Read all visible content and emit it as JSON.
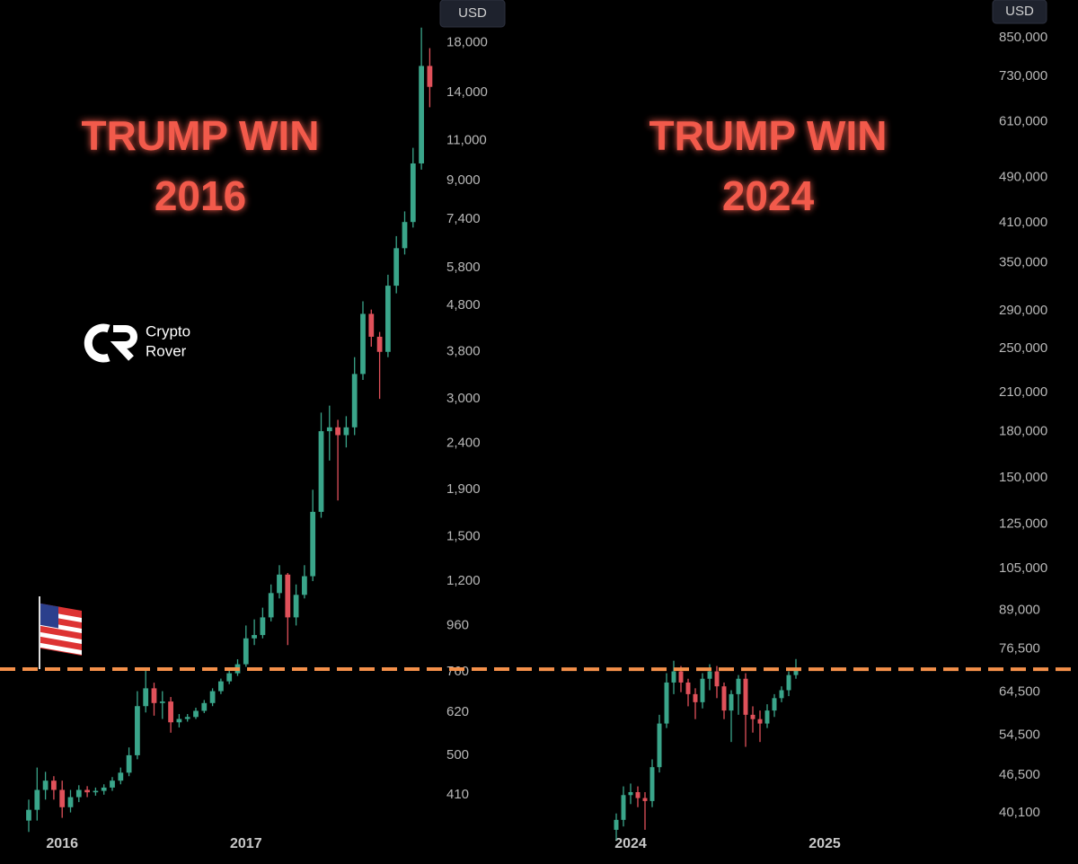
{
  "chart_data": [
    {
      "type": "candlestick",
      "title": "TRUMP WIN",
      "subtitle": "2016",
      "y_unit": "USD",
      "log_scale": true,
      "grid": false,
      "up_color": "#3aa58a",
      "down_color": "#e0515a",
      "reference_line": 771,
      "reference_color": "#f4904a",
      "ylim": [
        342,
        22290
      ],
      "yticks": [
        410,
        500,
        620,
        760,
        960,
        {
          "value": 1200,
          "label": "1,200"
        },
        {
          "value": 1500,
          "label": "1,500"
        },
        {
          "value": 1900,
          "label": "1,900"
        },
        {
          "value": 2400,
          "label": "2,400"
        },
        {
          "value": 3000,
          "label": "3,000"
        },
        {
          "value": 3800,
          "label": "3,800"
        },
        {
          "value": 4800,
          "label": "4,800"
        },
        {
          "value": 5800,
          "label": "5,800"
        },
        {
          "value": 7400,
          "label": "7,400"
        },
        {
          "value": 9000,
          "label": "9,000"
        },
        {
          "value": 11000,
          "label": "11,000"
        },
        {
          "value": 14000,
          "label": "14,000"
        },
        {
          "value": 18000,
          "label": "18,000"
        }
      ],
      "categories": [
        null,
        null,
        null,
        null,
        "2016",
        null,
        null,
        null,
        null,
        null,
        null,
        null,
        null,
        null,
        null,
        null,
        null,
        null,
        null,
        null,
        null,
        null,
        null,
        null,
        null,
        null,
        "2017",
        null,
        null,
        null,
        null,
        null,
        null,
        null,
        null,
        null,
        null,
        null,
        null,
        null,
        null,
        null,
        null,
        null,
        null,
        null,
        null,
        null,
        null
      ],
      "open": [
        360,
        380,
        420,
        440,
        420,
        385,
        405,
        420,
        415,
        418,
        425,
        440,
        458,
        500,
        640,
        700,
        650,
        655,
        590,
        600,
        606,
        625,
        650,
        690,
        725,
        755,
        790,
        900,
        915,
        1000,
        1130,
        1240,
        1000,
        1120,
        1230,
        1700,
        2550,
        2600,
        2500,
        2600,
        3400,
        4600,
        4100,
        3800,
        5300,
        6400,
        7300,
        9800,
        16000
      ],
      "high": [
        400,
        470,
        460,
        450,
        440,
        420,
        430,
        428,
        425,
        432,
        448,
        470,
        520,
        690,
        770,
        720,
        690,
        670,
        615,
        615,
        635,
        660,
        700,
        735,
        765,
        810,
        960,
        990,
        1050,
        1180,
        1300,
        1250,
        1180,
        1300,
        1900,
        2800,
        2900,
        2700,
        2750,
        3700,
        4900,
        4700,
        4200,
        5600,
        6800,
        7700,
        10600,
        19400,
        17500
      ],
      "low": [
        340,
        360,
        400,
        400,
        365,
        375,
        395,
        405,
        408,
        410,
        418,
        432,
        450,
        490,
        620,
        610,
        600,
        560,
        575,
        592,
        600,
        618,
        640,
        680,
        715,
        745,
        780,
        870,
        900,
        980,
        1100,
        870,
        960,
        1100,
        1200,
        1650,
        2200,
        1800,
        2350,
        2500,
        3300,
        3900,
        3000,
        3700,
        5100,
        6200,
        7100,
        9500,
        13000
      ],
      "close": [
        380,
        420,
        440,
        420,
        385,
        405,
        420,
        415,
        418,
        425,
        440,
        458,
        500,
        640,
        700,
        650,
        655,
        590,
        600,
        606,
        625,
        650,
        690,
        725,
        755,
        790,
        900,
        915,
        1000,
        1130,
        1240,
        1000,
        1120,
        1230,
        1700,
        2550,
        2600,
        2500,
        2600,
        3400,
        4600,
        4100,
        3800,
        5300,
        6400,
        7300,
        9800,
        16000,
        14400
      ]
    },
    {
      "type": "candlestick",
      "title": "TRUMP WIN",
      "subtitle": "2024",
      "y_unit": "USD",
      "log_scale": true,
      "grid": false,
      "up_color": "#3aa58a",
      "down_color": "#e0515a",
      "reference_line": 70600,
      "reference_color": "#f4904a",
      "ylim": [
        37360,
        986000
      ],
      "yticks": [
        {
          "value": 40100,
          "label": "40,100"
        },
        {
          "value": 46500,
          "label": "46,500"
        },
        {
          "value": 54500,
          "label": "54,500"
        },
        {
          "value": 64500,
          "label": "64,500"
        },
        {
          "value": 76500,
          "label": "76,500"
        },
        {
          "value": 89000,
          "label": "89,000"
        },
        {
          "value": 105000,
          "label": "105,000"
        },
        {
          "value": 125000,
          "label": "125,000"
        },
        {
          "value": 150000,
          "label": "150,000"
        },
        {
          "value": 180000,
          "label": "180,000"
        },
        {
          "value": 210000,
          "label": "210,000"
        },
        {
          "value": 250000,
          "label": "250,000"
        },
        {
          "value": 290000,
          "label": "290,000"
        },
        {
          "value": 350000,
          "label": "350,000"
        },
        {
          "value": 410000,
          "label": "410,000"
        },
        {
          "value": 490000,
          "label": "490,000"
        },
        {
          "value": 610000,
          "label": "610,000"
        },
        {
          "value": 730000,
          "label": "730,000"
        },
        {
          "value": 850000,
          "label": "850,000"
        }
      ],
      "categories": [
        null,
        null,
        "2024",
        null,
        null,
        null,
        null,
        null,
        null,
        null,
        null,
        null,
        null,
        null,
        null,
        null,
        null,
        null,
        null,
        null,
        null,
        null,
        null,
        null,
        null,
        null,
        null,
        null,
        null,
        "2025"
      ],
      "open": [
        37500,
        39000,
        43000,
        43500,
        42500,
        42000,
        48000,
        57000,
        67000,
        70000,
        67000,
        64000,
        62000,
        68000,
        70000,
        66000,
        60000,
        64000,
        68000,
        59000,
        58000,
        57000,
        60000,
        63000,
        65000,
        69000,
        null,
        null,
        null,
        null
      ],
      "high": [
        40000,
        44500,
        45000,
        44500,
        43500,
        49500,
        59000,
        69500,
        73000,
        71500,
        68000,
        65500,
        69500,
        72000,
        71500,
        67000,
        65000,
        69000,
        69500,
        61000,
        60000,
        61500,
        64000,
        66000,
        70000,
        73500,
        null,
        null,
        null,
        null
      ],
      "low": [
        36000,
        38000,
        41500,
        41000,
        37500,
        41000,
        47000,
        56000,
        64000,
        64500,
        61000,
        58000,
        60500,
        65000,
        63000,
        58000,
        53000,
        59000,
        52000,
        55000,
        53000,
        56000,
        58500,
        62000,
        63500,
        68000,
        null,
        null,
        null,
        null
      ],
      "close": [
        39000,
        43000,
        43500,
        42500,
        42000,
        48000,
        57000,
        67000,
        70000,
        67000,
        64000,
        62000,
        68000,
        70000,
        66000,
        60000,
        64000,
        68000,
        59000,
        58000,
        57000,
        60000,
        63000,
        65000,
        69000,
        71000,
        null,
        null,
        null,
        null
      ]
    }
  ],
  "watermark": [
    "Crypto",
    "Rover"
  ]
}
